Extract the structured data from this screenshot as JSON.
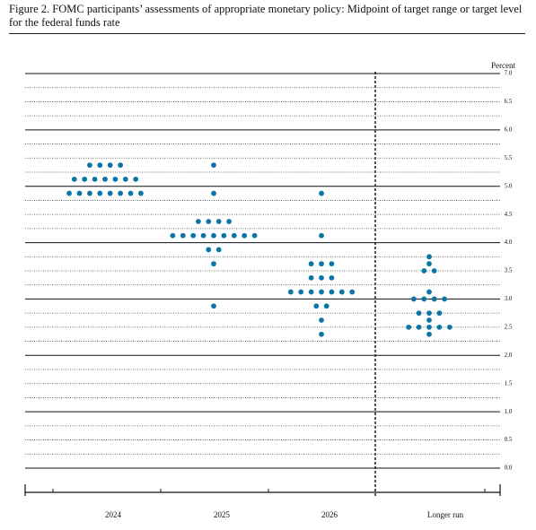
{
  "chart_data": {
    "type": "dot",
    "title": "Figure 2.  FOMC participants’ assessments of appropriate monetary policy:  Midpoint of target range or target level for the federal funds rate",
    "ylabel": "Percent",
    "color": "#0b76a6",
    "categories": [
      "2024",
      "2025",
      "2026",
      "Longer run"
    ],
    "dots": [
      [
        {
          "value": 5.375,
          "count": 4
        },
        {
          "value": 5.125,
          "count": 7
        },
        {
          "value": 4.875,
          "count": 8
        }
      ],
      [
        {
          "value": 5.375,
          "count": 1
        },
        {
          "value": 4.875,
          "count": 1
        },
        {
          "value": 4.375,
          "count": 4
        },
        {
          "value": 4.125,
          "count": 9
        },
        {
          "value": 3.875,
          "count": 2
        },
        {
          "value": 3.625,
          "count": 1
        },
        {
          "value": 2.875,
          "count": 1
        }
      ],
      [
        {
          "value": 4.875,
          "count": 1
        },
        {
          "value": 4.125,
          "count": 1
        },
        {
          "value": 3.625,
          "count": 3
        },
        {
          "value": 3.375,
          "count": 3
        },
        {
          "value": 3.125,
          "count": 7
        },
        {
          "value": 2.875,
          "count": 2
        },
        {
          "value": 2.625,
          "count": 1
        },
        {
          "value": 2.375,
          "count": 1
        }
      ],
      [
        {
          "value": 3.75,
          "count": 1
        },
        {
          "value": 3.625,
          "count": 1
        },
        {
          "value": 3.5,
          "count": 2
        },
        {
          "value": 3.125,
          "count": 1
        },
        {
          "value": 3.0,
          "count": 4
        },
        {
          "value": 2.75,
          "count": 3
        },
        {
          "value": 2.625,
          "count": 1
        },
        {
          "value": 2.5,
          "count": 5
        },
        {
          "value": 2.375,
          "count": 1
        }
      ]
    ],
    "ylim": [
      0,
      7
    ],
    "yticks": [
      {
        "value": 0,
        "label": "0.0"
      },
      {
        "value": 0.5,
        "label": "0.5"
      },
      {
        "value": 1,
        "label": "1.0"
      },
      {
        "value": 1.5,
        "label": "1.5"
      },
      {
        "value": 2,
        "label": "2.0"
      },
      {
        "value": 2.5,
        "label": "2.5"
      },
      {
        "value": 3,
        "label": "3.0"
      },
      {
        "value": 3.5,
        "label": "3.5"
      },
      {
        "value": 4,
        "label": "4.0"
      },
      {
        "value": 4.5,
        "label": "4.5"
      },
      {
        "value": 5,
        "label": "5.0"
      },
      {
        "value": 5.5,
        "label": "5.5"
      },
      {
        "value": 6,
        "label": "6.0"
      },
      {
        "value": 6.5,
        "label": "6.5"
      },
      {
        "value": 7,
        "label": "7.0"
      }
    ],
    "yminor": [
      0.25,
      0.75,
      1.25,
      1.75,
      2.25,
      2.75,
      3.25,
      3.75,
      4.25,
      4.75,
      5.25,
      5.75,
      6.25,
      6.75
    ],
    "grid": true
  }
}
